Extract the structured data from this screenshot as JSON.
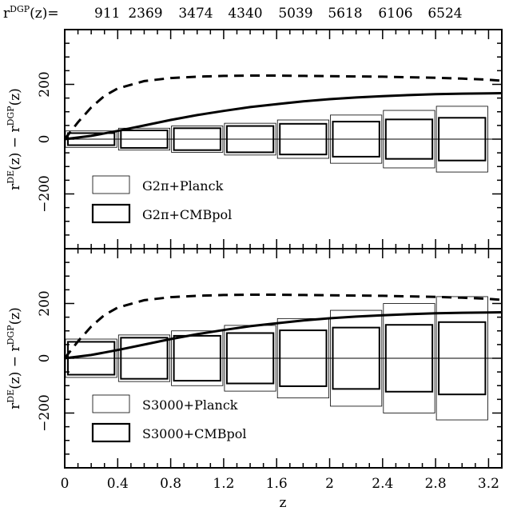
{
  "chart_data": [
    {
      "type": "box-error-comparison",
      "panel": "top",
      "top_axis_prefix": "r",
      "top_axis_prefix_sup": "DGP",
      "top_axis_prefix_suffix": "(z)=",
      "top_axis_values": [
        "911",
        "2369",
        "3474",
        "4340",
        "5039",
        "5618",
        "6106",
        "6524"
      ],
      "ylabel_main": "r",
      "ylabel_sup1": "DE",
      "ylabel_mid": "(z) − r",
      "ylabel_sup2": "DGP",
      "ylabel_end": "(z)",
      "xlim": [
        0,
        3.3
      ],
      "ylim": [
        -400,
        400
      ],
      "yticks": [
        -200,
        0,
        200
      ],
      "ytick_labels": [
        "−200",
        "0",
        "200"
      ],
      "grid": false,
      "zero_line": true,
      "bins": [
        {
          "z_lo": 0.0,
          "z_hi": 0.4,
          "z_mid": 0.2,
          "thin_half": 30,
          "thick_half": 22
        },
        {
          "z_lo": 0.4,
          "z_hi": 0.8,
          "z_mid": 0.6,
          "thin_half": 40,
          "thick_half": 32
        },
        {
          "z_lo": 0.8,
          "z_hi": 1.2,
          "z_mid": 1.0,
          "thin_half": 48,
          "thick_half": 40
        },
        {
          "z_lo": 1.2,
          "z_hi": 1.6,
          "z_mid": 1.4,
          "thin_half": 58,
          "thick_half": 48
        },
        {
          "z_lo": 1.6,
          "z_hi": 2.0,
          "z_mid": 1.8,
          "thin_half": 70,
          "thick_half": 56
        },
        {
          "z_lo": 2.0,
          "z_hi": 2.4,
          "z_mid": 2.2,
          "thin_half": 88,
          "thick_half": 64
        },
        {
          "z_lo": 2.4,
          "z_hi": 2.8,
          "z_mid": 2.6,
          "thin_half": 105,
          "thick_half": 72
        },
        {
          "z_lo": 2.8,
          "z_hi": 3.2,
          "z_mid": 3.0,
          "thin_half": 120,
          "thick_half": 78
        }
      ],
      "curves": [
        {
          "style": "solid",
          "x": [
            0,
            0.2,
            0.4,
            0.6,
            0.8,
            1.0,
            1.2,
            1.4,
            1.6,
            1.8,
            2.0,
            2.2,
            2.4,
            2.6,
            2.8,
            3.0,
            3.2,
            3.3
          ],
          "y": [
            0,
            12,
            30,
            50,
            70,
            88,
            103,
            117,
            128,
            138,
            146,
            152,
            157,
            161,
            164,
            166,
            167,
            168
          ]
        },
        {
          "style": "dashed",
          "x": [
            0,
            0.1,
            0.2,
            0.3,
            0.4,
            0.6,
            0.8,
            1.0,
            1.2,
            1.4,
            1.6,
            1.8,
            2.0,
            2.2,
            2.4,
            2.6,
            2.8,
            3.0,
            3.2,
            3.3
          ],
          "y": [
            0,
            62,
            116,
            158,
            185,
            212,
            223,
            228,
            231,
            232,
            232,
            231,
            230,
            229,
            228,
            226,
            224,
            221,
            217,
            213
          ]
        }
      ],
      "legend": [
        {
          "label": "G2π+Planck",
          "style": "thin"
        },
        {
          "label": "G2π+CMBpol",
          "style": "thick"
        }
      ],
      "legend_position": "lower-left"
    },
    {
      "type": "box-error-comparison",
      "panel": "bottom",
      "xlabel": "z",
      "xlim": [
        0,
        3.3
      ],
      "xticks": [
        0,
        0.4,
        0.8,
        1.2,
        1.6,
        2,
        2.4,
        2.8,
        3.2
      ],
      "xtick_labels": [
        "0",
        "0.4",
        "0.8",
        "1.2",
        "1.6",
        "2",
        "2.4",
        "2.8",
        "3.2"
      ],
      "ylabel_main": "r",
      "ylabel_sup1": "DE",
      "ylabel_mid": "(z) − r",
      "ylabel_sup2": "DGP",
      "ylabel_end": "(z)",
      "ylim": [
        -400,
        400
      ],
      "yticks": [
        -200,
        0,
        200
      ],
      "ytick_labels": [
        "−200",
        "0",
        "200"
      ],
      "grid": false,
      "zero_line": true,
      "bins": [
        {
          "z_lo": 0.0,
          "z_hi": 0.4,
          "z_mid": 0.2,
          "thin_half": 70,
          "thick_half": 60
        },
        {
          "z_lo": 0.4,
          "z_hi": 0.8,
          "z_mid": 0.6,
          "thin_half": 85,
          "thick_half": 75
        },
        {
          "z_lo": 0.8,
          "z_hi": 1.2,
          "z_mid": 1.0,
          "thin_half": 100,
          "thick_half": 82
        },
        {
          "z_lo": 1.2,
          "z_hi": 1.6,
          "z_mid": 1.4,
          "thin_half": 120,
          "thick_half": 92
        },
        {
          "z_lo": 1.6,
          "z_hi": 2.0,
          "z_mid": 1.8,
          "thin_half": 145,
          "thick_half": 102
        },
        {
          "z_lo": 2.0,
          "z_hi": 2.4,
          "z_mid": 2.2,
          "thin_half": 175,
          "thick_half": 112
        },
        {
          "z_lo": 2.4,
          "z_hi": 2.8,
          "z_mid": 2.6,
          "thin_half": 200,
          "thick_half": 122
        },
        {
          "z_lo": 2.8,
          "z_hi": 3.2,
          "z_mid": 3.0,
          "thin_half": 225,
          "thick_half": 132
        }
      ],
      "curves": [
        {
          "style": "solid",
          "x": [
            0,
            0.2,
            0.4,
            0.6,
            0.8,
            1.0,
            1.2,
            1.4,
            1.6,
            1.8,
            2.0,
            2.2,
            2.4,
            2.6,
            2.8,
            3.0,
            3.2,
            3.3
          ],
          "y": [
            0,
            12,
            30,
            50,
            70,
            88,
            103,
            117,
            128,
            138,
            146,
            152,
            157,
            161,
            164,
            166,
            167,
            168
          ]
        },
        {
          "style": "dashed",
          "x": [
            0,
            0.1,
            0.2,
            0.3,
            0.4,
            0.6,
            0.8,
            1.0,
            1.2,
            1.4,
            1.6,
            1.8,
            2.0,
            2.2,
            2.4,
            2.6,
            2.8,
            3.0,
            3.2,
            3.3
          ],
          "y": [
            0,
            62,
            116,
            158,
            185,
            212,
            223,
            228,
            231,
            232,
            232,
            231,
            230,
            229,
            228,
            226,
            224,
            221,
            217,
            213
          ]
        }
      ],
      "legend": [
        {
          "label": "S3000+Planck",
          "style": "thin"
        },
        {
          "label": "S3000+CMBpol",
          "style": "thick"
        }
      ],
      "legend_position": "lower-left"
    }
  ]
}
